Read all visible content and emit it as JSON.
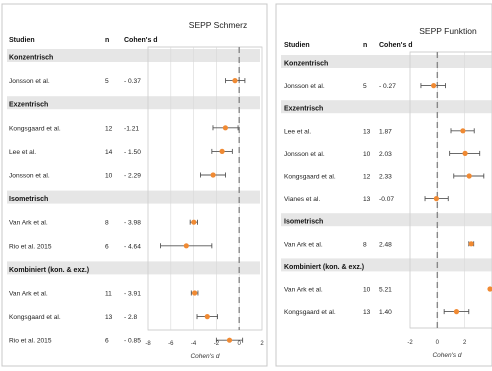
{
  "chart_data": [
    {
      "type": "forest",
      "title": "SEPP Schmerz",
      "columns": {
        "study": "Studien",
        "n": "n",
        "d": "Cohen's d"
      },
      "xlabel": "Cohen's d",
      "xlim": [
        -8,
        2
      ],
      "xticks": [
        -8,
        -6,
        -4,
        -2,
        0,
        2
      ],
      "rows": [
        {
          "kind": "group",
          "label": "Konzentrisch"
        },
        {
          "kind": "study",
          "study": "Jonsson et al.",
          "n": "5",
          "d_label": "- 0.37",
          "d": -0.37,
          "ci": [
            -1.2,
            0.5
          ]
        },
        {
          "kind": "group",
          "label": "Exzentrisch"
        },
        {
          "kind": "study",
          "study": "Kongsgaard et al.",
          "n": "12",
          "d_label": "-1.21",
          "d": -1.21,
          "ci": [
            -2.3,
            -0.1
          ]
        },
        {
          "kind": "study",
          "study": "Lee et al.",
          "n": "14",
          "d_label": "- 1.50",
          "d": -1.5,
          "ci": [
            -2.4,
            -0.6
          ]
        },
        {
          "kind": "study",
          "study": "Jonsson et al.",
          "n": "10",
          "d_label": "- 2.29",
          "d": -2.29,
          "ci": [
            -3.4,
            -1.2
          ]
        },
        {
          "kind": "group",
          "label": "Isometrisch"
        },
        {
          "kind": "study",
          "study": "Van Ark et al.",
          "n": "8",
          "d_label": "- 3.98",
          "d": -3.98,
          "ci": [
            -4.3,
            -3.66
          ]
        },
        {
          "kind": "study",
          "study": "Rio et al. 2015",
          "n": "6",
          "d_label": "- 4.64",
          "d": -4.64,
          "ci": [
            -6.9,
            -2.4
          ]
        },
        {
          "kind": "group",
          "label": "Kombiniert (kon. & exz.)"
        },
        {
          "kind": "study",
          "study": "Van Ark et al.",
          "n": "11",
          "d_label": "- 3.91",
          "d": -3.91,
          "ci": [
            -4.2,
            -3.62
          ]
        },
        {
          "kind": "study",
          "study": "Kongsgaard et al.",
          "n": "13",
          "d_label": "- 2.8",
          "d": -2.8,
          "ci": [
            -3.7,
            -1.9
          ]
        },
        {
          "kind": "study",
          "study": "Rio et al. 2015",
          "n": "6",
          "d_label": "- 0.85",
          "d": -0.85,
          "ci": [
            -2.0,
            0.3
          ]
        }
      ]
    },
    {
      "type": "forest",
      "title": "SEPP Funktion",
      "columns": {
        "study": "Studien",
        "n": "n",
        "d": "Cohen's d"
      },
      "xlabel": "Cohen's d",
      "xlim": [
        -2,
        4
      ],
      "xticks": [
        -2,
        0,
        2,
        4
      ],
      "rows": [
        {
          "kind": "group",
          "label": "Konzentrisch"
        },
        {
          "kind": "study",
          "study": "Jonsson et al.",
          "n": "5",
          "d_label": "- 0.27",
          "d": -0.27,
          "ci": [
            -1.2,
            0.6
          ]
        },
        {
          "kind": "group",
          "label": "Exzentrisch"
        },
        {
          "kind": "study",
          "study": "Lee et al.",
          "n": "13",
          "d_label": "1.87",
          "d": 1.87,
          "ci": [
            1.0,
            2.7
          ]
        },
        {
          "kind": "study",
          "study": "Jonsson et al.",
          "n": "10",
          "d_label": "2.03",
          "d": 2.03,
          "ci": [
            0.9,
            3.1
          ]
        },
        {
          "kind": "study",
          "study": "Kongsgaard et al.",
          "n": "12",
          "d_label": "2.33",
          "d": 2.33,
          "ci": [
            1.2,
            3.4
          ]
        },
        {
          "kind": "study",
          "study": "Vianes et al.",
          "n": "13",
          "d_label": "-0.07",
          "d": -0.07,
          "ci": [
            -0.9,
            0.8
          ]
        },
        {
          "kind": "group",
          "label": "Isometrisch"
        },
        {
          "kind": "study",
          "study": "Van Ark et al.",
          "n": "8",
          "d_label": "2.48",
          "d": 2.48,
          "ci": [
            2.3,
            2.66
          ]
        },
        {
          "kind": "group",
          "label": "Kombiniert (kon. & exz.)"
        },
        {
          "kind": "study",
          "study": "Van Ark et al.",
          "n": "10",
          "d_label": "5.21",
          "d": 5.21,
          "ci": [
            5.05,
            5.37
          ]
        },
        {
          "kind": "study",
          "study": "Kongsgaard et al.",
          "n": "13",
          "d_label": "1.40",
          "d": 1.4,
          "ci": [
            0.5,
            2.3
          ]
        }
      ]
    }
  ]
}
